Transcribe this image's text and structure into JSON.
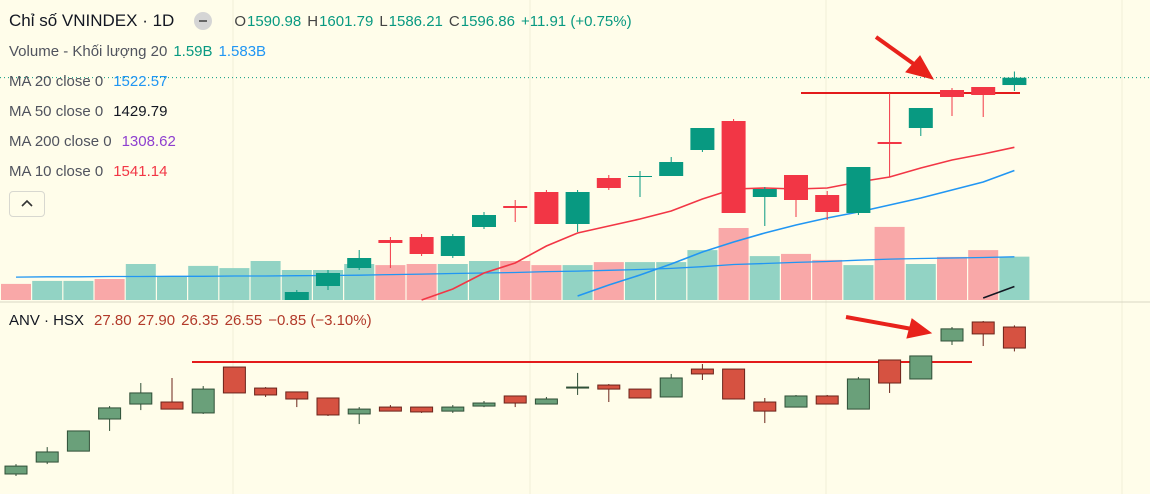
{
  "chart_data": [
    {
      "type": "candlestick",
      "title": "Chỉ số VNINDEX · 1D",
      "legend": [
        {
          "prefix": "O",
          "value": 1590.98
        },
        {
          "prefix": "H",
          "value": 1601.79
        },
        {
          "prefix": "L",
          "value": 1586.21
        },
        {
          "prefix": "C",
          "value": 1596.86
        }
      ],
      "change": "+11.91 (+0.75%)",
      "ylim": [
        1419,
        1659
      ],
      "up_color": "#089981",
      "down_color": "#f23645",
      "open": [
        null,
        null,
        null,
        null,
        null,
        null,
        null,
        null,
        null,
        1419,
        1430.2,
        1444.6,
        1467,
        1469.4,
        1454.2,
        1477.4,
        1494.2,
        1505.4,
        1479.8,
        1516.6,
        1517.4,
        1518.2,
        1539,
        1562.2,
        1501.4,
        1519,
        1503,
        1488.6,
        1545.4,
        1556.6,
        1587,
        1589.4,
        1590.98
      ],
      "high": [
        null,
        null,
        null,
        null,
        null,
        null,
        null,
        null,
        null,
        1427,
        1443,
        1459,
        1469.4,
        1471.8,
        1471.8,
        1489.4,
        1499,
        1507,
        1507,
        1519,
        1522.2,
        1533.4,
        1556.6,
        1563.8,
        1509.4,
        1519,
        1506.2,
        1525.4,
        1584.6,
        1572.6,
        1588.6,
        1589.4,
        1601.79
      ],
      "low": [
        null,
        null,
        null,
        null,
        null,
        null,
        null,
        null,
        null,
        1419,
        1427,
        1443,
        1444.6,
        1454.2,
        1452.6,
        1475.8,
        1481.4,
        1479.8,
        1473.4,
        1507,
        1501.4,
        1518.2,
        1537.4,
        1488.6,
        1478.2,
        1485.4,
        1483,
        1487,
        1517.4,
        1550.2,
        1566.2,
        1565.4,
        1586.21
      ],
      "close": [
        null,
        null,
        null,
        null,
        null,
        null,
        null,
        null,
        null,
        1425.4,
        1440.6,
        1452.6,
        1464.6,
        1455.8,
        1470.2,
        1487,
        1492.6,
        1479.8,
        1505.4,
        1508.6,
        1518.2,
        1529.4,
        1556.6,
        1488.6,
        1507.8,
        1499,
        1489.4,
        1525.4,
        1543.8,
        1572.6,
        1581.4,
        1583,
        1596.86
      ],
      "hline": {
        "value": 1584.6,
        "color": "#e31b1b"
      },
      "volume": {
        "label": "Volume - Khối lượng 20",
        "readouts": [
          {
            "value": 1.59,
            "label": "1.59B"
          },
          {
            "value": 1.583,
            "label": "1.583B"
          }
        ],
        "ylim": [
          0,
          11
        ],
        "values": [
          0.59,
          0.7,
          0.7,
          0.77,
          1.32,
          0.88,
          1.25,
          1.17,
          1.43,
          1.1,
          1.1,
          1.32,
          1.28,
          1.32,
          1.32,
          1.43,
          1.43,
          1.28,
          1.28,
          1.39,
          1.39,
          1.39,
          1.83,
          2.64,
          1.61,
          1.69,
          1.47,
          1.28,
          2.68,
          1.32,
          1.58,
          1.83,
          1.59
        ],
        "colors": [
          "#f9a8a8",
          "#92d3c4",
          "#92d3c4",
          "#f9a8a8",
          "#92d3c4",
          "#92d3c4",
          "#92d3c4",
          "#92d3c4",
          "#92d3c4",
          "#92d3c4",
          "#92d3c4",
          "#92d3c4",
          "#f9a8a8",
          "#f9a8a8",
          "#92d3c4",
          "#92d3c4",
          "#f9a8a8",
          "#f9a8a8",
          "#92d3c4",
          "#f9a8a8",
          "#92d3c4",
          "#92d3c4",
          "#92d3c4",
          "#f9a8a8",
          "#92d3c4",
          "#f9a8a8",
          "#f9a8a8",
          "#92d3c4",
          "#f9a8a8",
          "#92d3c4",
          "#f9a8a8",
          "#f9a8a8",
          "#92d3c4"
        ],
        "ma_color": "#2196f3",
        "ma_values": [
          0.84,
          0.85,
          0.85,
          0.86,
          0.86,
          0.87,
          0.87,
          0.88,
          0.88,
          0.89,
          0.9,
          0.91,
          0.93,
          0.95,
          0.97,
          0.99,
          1.01,
          1.04,
          1.06,
          1.09,
          1.12,
          1.16,
          1.22,
          1.3,
          1.34,
          1.38,
          1.41,
          1.46,
          1.5,
          1.52,
          1.54,
          1.56,
          1.583
        ]
      },
      "indicators": [
        {
          "name": "MA 20 close 0",
          "value": 1522.57,
          "color": "#2196f3",
          "values": [
            null,
            null,
            null,
            null,
            null,
            null,
            null,
            null,
            null,
            null,
            null,
            null,
            null,
            null,
            null,
            null,
            null,
            null,
            1422.2,
            1431,
            1439,
            1447.8,
            1457.4,
            1465.4,
            1472.6,
            1479,
            1484.6,
            1489.4,
            1495,
            1500.6,
            1507,
            1513.4,
            1522.57
          ]
        },
        {
          "name": "MA 50 close 0",
          "value": 1429.79,
          "color": "#131722",
          "values": [
            null,
            null,
            null,
            null,
            null,
            null,
            null,
            null,
            null,
            null,
            null,
            null,
            null,
            null,
            null,
            null,
            null,
            null,
            null,
            null,
            null,
            null,
            null,
            null,
            null,
            null,
            null,
            null,
            null,
            null,
            null,
            1420.6,
            1429.79
          ]
        },
        {
          "name": "MA 200 close 0",
          "value": 1308.62,
          "color": "#8e3fcf"
        },
        {
          "name": "MA 10 close 0",
          "value": 1541.14,
          "color": "#f23645",
          "values": [
            null,
            null,
            null,
            null,
            null,
            null,
            null,
            null,
            null,
            null,
            null,
            null,
            null,
            1419,
            1427.8,
            1440.6,
            1448.6,
            1462.2,
            1472.6,
            1478.2,
            1483.8,
            1490.2,
            1499.8,
            1507.8,
            1508.6,
            1507.8,
            1508.6,
            1513.4,
            1517.4,
            1524.6,
            1531,
            1535.8,
            1541.14
          ]
        }
      ]
    },
    {
      "type": "candlestick",
      "title": "ANV · HSX",
      "legend": [
        {
          "value": 27.8,
          "label": "27.80"
        },
        {
          "value": 27.9,
          "label": "27.90"
        },
        {
          "value": 26.35,
          "label": "26.35"
        },
        {
          "value": 26.55,
          "label": "26.55"
        }
      ],
      "change": "−0.85 (−3.10%)",
      "ylim": [
        17.87,
        29.11
      ],
      "up_color": "#6aa07a",
      "down_color": "#d65241",
      "up_border": "#2f4f37",
      "down_border": "#6b241b",
      "open": [
        19.06,
        19.77,
        20.42,
        22.33,
        23.22,
        23.34,
        22.69,
        25.42,
        24.17,
        23.94,
        23.58,
        22.63,
        23.04,
        23.04,
        22.8,
        23.1,
        23.7,
        23.22,
        24.17,
        24.35,
        24.11,
        23.64,
        25.3,
        25.3,
        23.34,
        23.04,
        23.7,
        22.92,
        25.84,
        24.71,
        26.97,
        28.1,
        27.8
      ],
      "high": [
        19.65,
        20.66,
        21.62,
        23.1,
        24.47,
        24.77,
        24.29,
        25.42,
        24.23,
        23.94,
        23.58,
        23.04,
        23.16,
        23.04,
        23.16,
        23.4,
        23.7,
        23.64,
        25.07,
        24.41,
        24.11,
        25.01,
        25.6,
        25.3,
        23.58,
        23.76,
        23.76,
        24.83,
        25.84,
        26.08,
        27.8,
        28.16,
        27.9
      ],
      "low": [
        18.94,
        19.65,
        20.42,
        21.62,
        22.86,
        22.92,
        22.63,
        23.88,
        23.64,
        23.04,
        22.51,
        22.03,
        22.8,
        22.69,
        22.69,
        23.04,
        23.04,
        23.22,
        23.76,
        23.34,
        23.58,
        23.64,
        24.65,
        23.52,
        22.09,
        23.04,
        23.22,
        22.92,
        23.88,
        24.71,
        26.73,
        26.67,
        26.35
      ],
      "close": [
        19.53,
        20.37,
        21.62,
        22.99,
        23.88,
        22.92,
        24.11,
        23.88,
        23.76,
        23.52,
        22.57,
        22.92,
        22.8,
        22.75,
        23.04,
        23.28,
        23.28,
        23.52,
        24.23,
        24.11,
        23.58,
        24.77,
        25.01,
        23.52,
        22.8,
        23.7,
        23.22,
        24.71,
        24.47,
        26.08,
        27.69,
        27.39,
        26.55
      ],
      "hline": {
        "value": 25.72,
        "color": "#e31b1b"
      }
    }
  ]
}
